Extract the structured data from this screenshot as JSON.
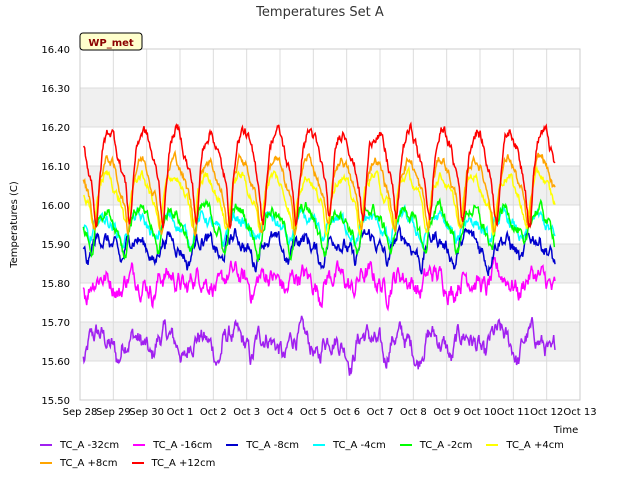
{
  "chart_data": {
    "type": "line",
    "title": "Temperatures Set A",
    "xlabel": "Time",
    "ylabel": "Temperatures (C)",
    "ylim": [
      15.5,
      16.4
    ],
    "yticks": [
      "15.50",
      "15.60",
      "15.70",
      "15.80",
      "15.90",
      "16.00",
      "16.10",
      "16.20",
      "16.30",
      "16.40"
    ],
    "xticks": [
      "Sep 28",
      "Sep 29",
      "Sep 30",
      "Oct 1",
      "Oct 2",
      "Oct 3",
      "Oct 4",
      "Oct 5",
      "Oct 6",
      "Oct 7",
      "Oct 8",
      "Oct 9",
      "Oct 10",
      "Oct 11",
      "Oct 12",
      "Oct 13"
    ],
    "xrange_days": [
      0,
      15
    ],
    "data_end_day": 14.25,
    "site_label": "WP_met",
    "grid": true,
    "series": [
      {
        "name": "TC_A -32cm",
        "color": "#a020f0",
        "base": 15.65,
        "amp": 0.03,
        "noise": 0.02,
        "phase": 0.3
      },
      {
        "name": "TC_A -16cm",
        "color": "#ff00ff",
        "base": 15.81,
        "amp": 0.02,
        "noise": 0.02,
        "phase": 0.35
      },
      {
        "name": "TC_A -8cm",
        "color": "#0000cd",
        "base": 15.9,
        "amp": 0.03,
        "noise": 0.015,
        "phase": 0.4
      },
      {
        "name": "TC_A -4cm",
        "color": "#00ffff",
        "base": 15.95,
        "amp": 0.03,
        "noise": 0.012,
        "phase": 0.45
      },
      {
        "name": "TC_A -2cm",
        "color": "#00ff00",
        "base": 15.96,
        "amp": 0.05,
        "noise": 0.012,
        "phase": 0.5
      },
      {
        "name": "TC_A +4cm",
        "color": "#ffff00",
        "base": 16.04,
        "amp": 0.06,
        "noise": 0.01,
        "phase": 0.55
      },
      {
        "name": "TC_A +8cm",
        "color": "#ffa500",
        "base": 16.07,
        "amp": 0.08,
        "noise": 0.01,
        "phase": 0.6
      },
      {
        "name": "TC_A +12cm",
        "color": "#ff0000",
        "base": 16.13,
        "amp": 0.1,
        "noise": 0.012,
        "phase": 0.65
      }
    ],
    "legend_rows": [
      [
        "TC_A -32cm",
        "TC_A -16cm",
        "TC_A -8cm",
        "TC_A -4cm",
        "TC_A -2cm",
        "TC_A +4cm"
      ],
      [
        "TC_A +8cm",
        "TC_A +12cm"
      ]
    ]
  }
}
